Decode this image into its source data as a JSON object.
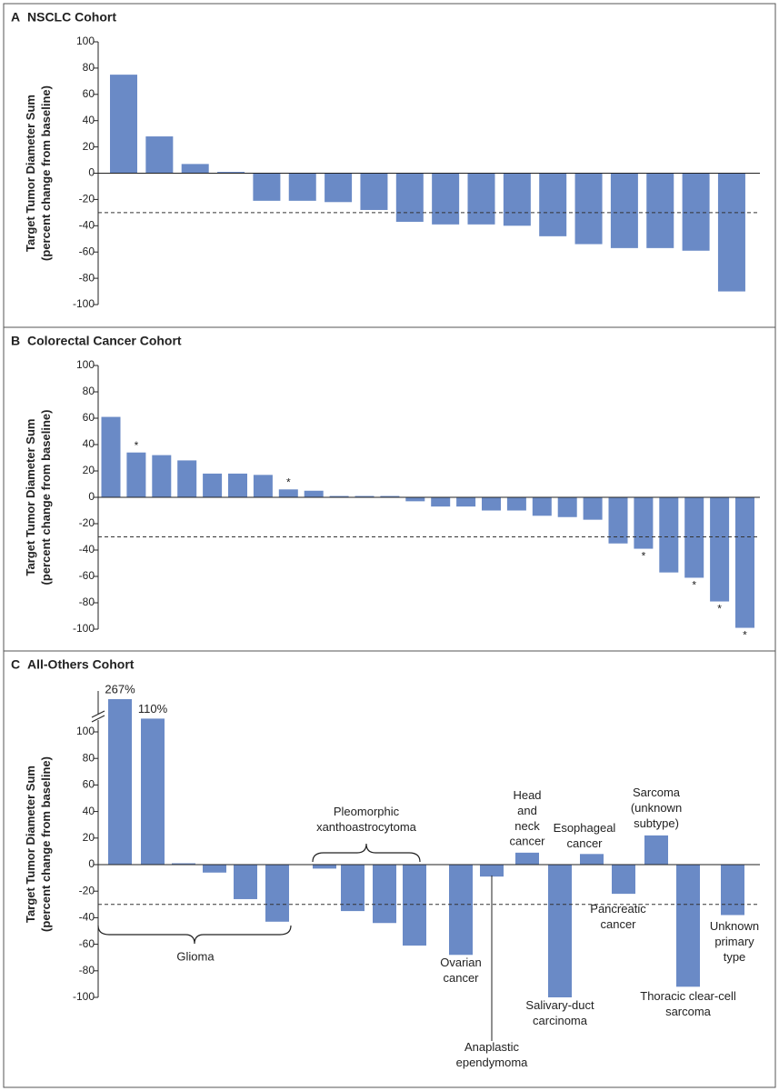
{
  "chart_data": [
    {
      "type": "bar",
      "label": "A",
      "title": "NSCLC Cohort",
      "ylabel": "Target Tumor Diameter Sum\n(percent change from baseline)",
      "values": [
        75,
        28,
        7,
        1,
        -21,
        -21,
        -22,
        -28,
        -37,
        -39,
        -39,
        -40,
        -48,
        -54,
        -57,
        -57,
        -59,
        -90
      ],
      "color": "#6a8ac6",
      "ylim": [
        -100,
        100
      ],
      "yticks": [
        -100,
        -80,
        -60,
        -40,
        -20,
        0,
        20,
        40,
        60,
        80,
        100
      ],
      "reference_line": -30
    },
    {
      "type": "bar",
      "label": "B",
      "title": "Colorectal Cancer Cohort",
      "ylabel": "Target Tumor Diameter Sum\n(percent change from baseline)",
      "values": [
        61,
        34,
        32,
        28,
        18,
        18,
        17,
        6,
        5,
        1,
        1,
        1,
        -3,
        -7,
        -7,
        -10,
        -10,
        -14,
        -15,
        -17,
        -35,
        -39,
        -57,
        -61,
        -79,
        -99
      ],
      "notes": [
        null,
        "*",
        null,
        null,
        null,
        null,
        null,
        "*",
        null,
        null,
        null,
        null,
        null,
        null,
        null,
        null,
        null,
        null,
        null,
        null,
        null,
        "*",
        null,
        "*",
        "*",
        "*"
      ],
      "color": "#6a8ac6",
      "ylim": [
        -100,
        100
      ],
      "yticks": [
        -100,
        -80,
        -60,
        -40,
        -20,
        0,
        20,
        40,
        60,
        80,
        100
      ],
      "reference_line": -30
    },
    {
      "type": "bar",
      "label": "C",
      "title": "All-Others Cohort",
      "ylabel": "Target Tumor Diameter Sum\n(percent change from baseline)",
      "categories": [
        "Glioma",
        "Glioma",
        "Glioma",
        "Glioma",
        "Glioma",
        "Glioma",
        "Pleomorphic\nxanthoastrocytoma",
        "Pleomorphic\nxanthoastrocytoma",
        "Pleomorphic\nxanthoastrocytoma",
        "Pleomorphic\nxanthoastrocytoma",
        "Ovarian\ncancer",
        "Anaplastic\nependymoma",
        "Head\nand\nneck\ncancer",
        "Salivary-duct\ncarcinoma",
        "Esophageal\ncancer",
        "Pancreatic\ncancer",
        "Sarcoma\n(unknown\nsubtype)",
        "Thoracic clear-cell\nsarcoma",
        "Unknown\nprimary\ntype"
      ],
      "values": [
        267,
        110,
        1,
        -6,
        -26,
        -43,
        -3,
        -35,
        -44,
        -61,
        -68,
        -9,
        9,
        -100,
        8,
        -22,
        22,
        -92,
        -38
      ],
      "value_labels": [
        "267%",
        "110%",
        null,
        null,
        null,
        null,
        null,
        null,
        null,
        null,
        null,
        null,
        null,
        null,
        null,
        null,
        null,
        null,
        null
      ],
      "color": "#6a8ac6",
      "ylim": [
        -100,
        125
      ],
      "yticks": [
        -100,
        -80,
        -60,
        -40,
        -20,
        0,
        20,
        40,
        60,
        80,
        100
      ],
      "axis_break": true,
      "reference_line": -30
    }
  ]
}
